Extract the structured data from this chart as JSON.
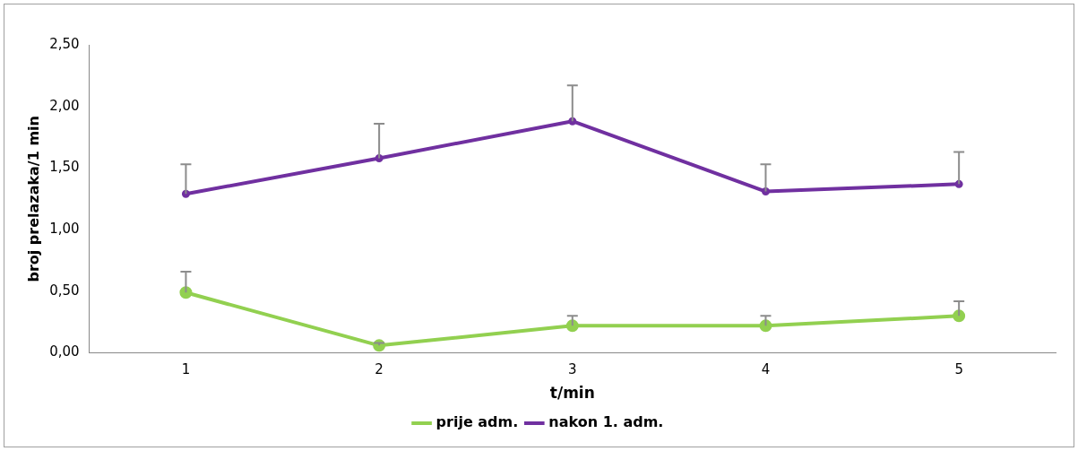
{
  "chart_data": {
    "type": "line",
    "xlabel": "t/min",
    "ylabel": "broj prelazaka/1 min",
    "categories": [
      "1",
      "2",
      "3",
      "4",
      "5"
    ],
    "series": [
      {
        "name": "prije adm.",
        "color": "#92d050",
        "values": [
          0.49,
          0.06,
          0.22,
          0.22,
          0.3
        ],
        "errors": [
          [
            0.49,
            0.66
          ],
          [
            0.06,
            0.08
          ],
          [
            0.22,
            0.3
          ],
          [
            0.22,
            0.3
          ],
          [
            0.3,
            0.42
          ]
        ]
      },
      {
        "name": "nakon 1. adm.",
        "color": "#7030a0",
        "values": [
          1.29,
          1.58,
          1.88,
          1.31,
          1.37
        ],
        "errors": [
          [
            1.29,
            1.53
          ],
          [
            1.58,
            1.86
          ],
          [
            1.88,
            2.17
          ],
          [
            1.31,
            1.53
          ],
          [
            1.37,
            1.63
          ]
        ]
      }
    ],
    "ylim": [
      0,
      2.5
    ],
    "yticks": [
      {
        "value": 0,
        "label": "0,00"
      },
      {
        "value": 0.5,
        "label": "0,50"
      },
      {
        "value": 1,
        "label": "1,00"
      },
      {
        "value": 1.5,
        "label": "1,50"
      },
      {
        "value": 2,
        "label": "2,00"
      },
      {
        "value": 2.5,
        "label": "2,50"
      }
    ],
    "grid": false,
    "legend": "bottom",
    "marker": "circle",
    "line_style": "solid"
  }
}
